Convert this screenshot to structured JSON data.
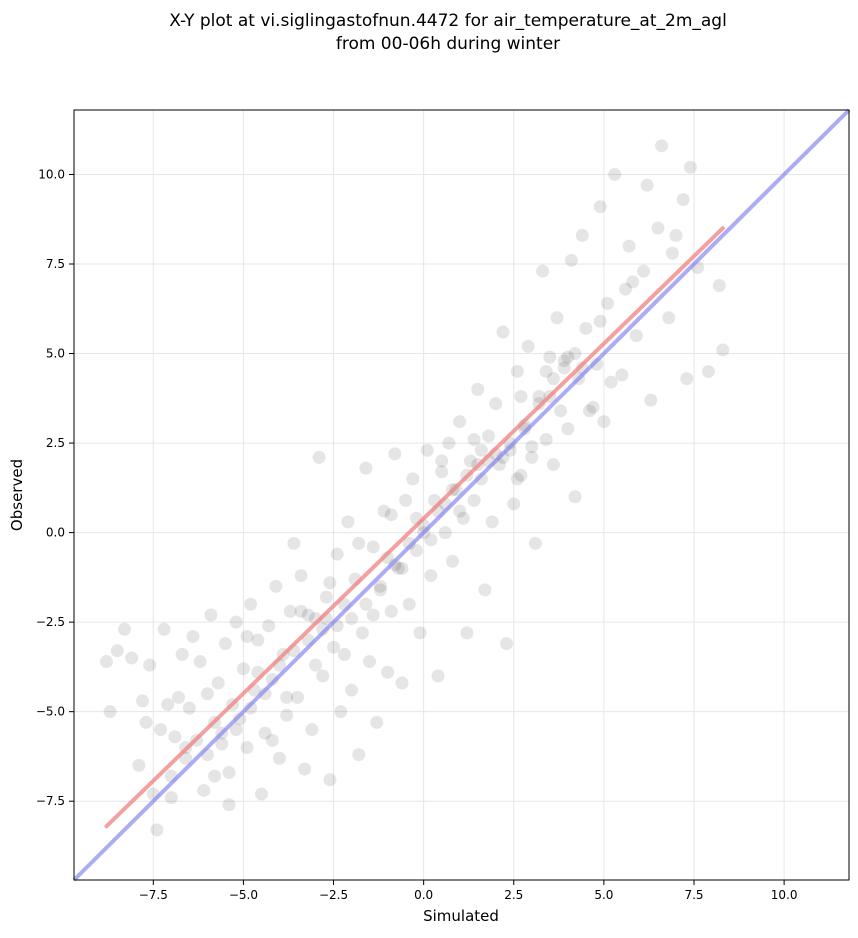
{
  "chart_data": {
    "type": "scatter",
    "title_line1": "X-Y plot at vi.siglingastofnun.4472 for air_temperature_at_2m_agl",
    "title_line2": "from 00-06h during winter",
    "xlabel": "Simulated",
    "ylabel": "Observed",
    "xlim": [
      -9.7,
      11.8
    ],
    "ylim": [
      -9.7,
      11.8
    ],
    "xticks": [
      -7.5,
      -5.0,
      -2.5,
      0.0,
      2.5,
      5.0,
      7.5,
      10.0
    ],
    "yticks": [
      -7.5,
      -5.0,
      -2.5,
      0.0,
      2.5,
      5.0,
      7.5,
      10.0
    ],
    "xtick_labels": [
      "−7.5",
      "−5.0",
      "−2.5",
      "0.0",
      "2.5",
      "5.0",
      "7.5",
      "10.0"
    ],
    "ytick_labels": [
      "−7.5",
      "−5.0",
      "−2.5",
      "0.0",
      "2.5",
      "5.0",
      "7.5",
      "10.0"
    ],
    "grid": true,
    "colors": {
      "points": "#000000",
      "fit_line": "#f08080",
      "identity_line": "#8080f0"
    },
    "fit_line": {
      "x": [
        -8.8,
        8.3
      ],
      "y": [
        -8.2,
        8.5
      ]
    },
    "identity_line": {
      "x": [
        -9.7,
        11.8
      ],
      "y": [
        -9.7,
        11.8
      ]
    },
    "points": [
      [
        -8.8,
        -3.6
      ],
      [
        -8.7,
        -5.0
      ],
      [
        -8.5,
        -3.3
      ],
      [
        -8.3,
        -2.7
      ],
      [
        -8.1,
        -3.5
      ],
      [
        -7.9,
        -6.5
      ],
      [
        -7.8,
        -4.7
      ],
      [
        -7.7,
        -5.3
      ],
      [
        -7.6,
        -3.7
      ],
      [
        -7.5,
        -7.3
      ],
      [
        -7.4,
        -8.3
      ],
      [
        -7.3,
        -5.5
      ],
      [
        -7.2,
        -2.7
      ],
      [
        -7.1,
        -4.8
      ],
      [
        -7.0,
        -7.4
      ],
      [
        -6.9,
        -5.7
      ],
      [
        -6.8,
        -4.6
      ],
      [
        -6.7,
        -3.4
      ],
      [
        -6.6,
        -6.3
      ],
      [
        -6.5,
        -4.9
      ],
      [
        -6.4,
        -2.9
      ],
      [
        -6.3,
        -5.8
      ],
      [
        -6.2,
        -3.6
      ],
      [
        -6.1,
        -7.2
      ],
      [
        -6.0,
        -4.5
      ],
      [
        -5.9,
        -2.3
      ],
      [
        -5.8,
        -6.8
      ],
      [
        -5.7,
        -4.2
      ],
      [
        -5.6,
        -5.6
      ],
      [
        -5.5,
        -3.1
      ],
      [
        -5.4,
        -7.6
      ],
      [
        -5.3,
        -4.8
      ],
      [
        -5.2,
        -2.5
      ],
      [
        -5.1,
        -5.2
      ],
      [
        -5.0,
        -3.8
      ],
      [
        -4.9,
        -6.0
      ],
      [
        -4.8,
        -2.0
      ],
      [
        -4.7,
        -4.4
      ],
      [
        -4.6,
        -3.0
      ],
      [
        -4.5,
        -7.3
      ],
      [
        -4.4,
        -5.6
      ],
      [
        -4.3,
        -2.6
      ],
      [
        -4.2,
        -4.1
      ],
      [
        -4.1,
        -1.5
      ],
      [
        -4.0,
        -6.3
      ],
      [
        -3.9,
        -3.4
      ],
      [
        -3.8,
        -5.1
      ],
      [
        -3.7,
        -2.2
      ],
      [
        -3.6,
        -0.3
      ],
      [
        -3.5,
        -4.6
      ],
      [
        -3.4,
        -1.2
      ],
      [
        -3.3,
        -6.6
      ],
      [
        -3.2,
        -3.0
      ],
      [
        -3.1,
        -5.5
      ],
      [
        -3.0,
        -2.4
      ],
      [
        -2.9,
        2.1
      ],
      [
        -2.8,
        -4.0
      ],
      [
        -2.7,
        -1.8
      ],
      [
        -2.6,
        -6.9
      ],
      [
        -2.5,
        -3.2
      ],
      [
        -2.4,
        -0.6
      ],
      [
        -2.3,
        -5.0
      ],
      [
        -2.2,
        -2.0
      ],
      [
        -2.1,
        0.3
      ],
      [
        -2.0,
        -4.4
      ],
      [
        -1.9,
        -1.3
      ],
      [
        -1.8,
        -6.2
      ],
      [
        -1.7,
        -2.8
      ],
      [
        -1.6,
        1.8
      ],
      [
        -1.5,
        -3.6
      ],
      [
        -1.4,
        -0.4
      ],
      [
        -1.3,
        -5.3
      ],
      [
        -1.2,
        -1.6
      ],
      [
        -1.1,
        0.6
      ],
      [
        -1.0,
        -3.9
      ],
      [
        -0.9,
        -2.2
      ],
      [
        -0.8,
        2.2
      ],
      [
        -0.7,
        -1.0
      ],
      [
        -0.6,
        -4.2
      ],
      [
        -0.5,
        0.9
      ],
      [
        -0.4,
        -2.0
      ],
      [
        -0.3,
        1.5
      ],
      [
        -0.2,
        -0.5
      ],
      [
        -0.1,
        -2.8
      ],
      [
        0.0,
        0.2
      ],
      [
        0.1,
        2.3
      ],
      [
        0.2,
        -1.2
      ],
      [
        0.3,
        0.9
      ],
      [
        0.4,
        -4.0
      ],
      [
        0.5,
        1.7
      ],
      [
        0.6,
        0.0
      ],
      [
        0.7,
        2.5
      ],
      [
        0.8,
        -0.8
      ],
      [
        0.9,
        1.2
      ],
      [
        1.0,
        3.1
      ],
      [
        1.1,
        0.4
      ],
      [
        1.2,
        -2.8
      ],
      [
        1.3,
        2.0
      ],
      [
        1.4,
        0.9
      ],
      [
        1.5,
        4.0
      ],
      [
        1.6,
        1.5
      ],
      [
        1.7,
        -1.6
      ],
      [
        1.8,
        2.7
      ],
      [
        1.9,
        0.3
      ],
      [
        2.0,
        3.6
      ],
      [
        2.1,
        1.9
      ],
      [
        2.2,
        5.6
      ],
      [
        2.3,
        -3.1
      ],
      [
        2.4,
        2.3
      ],
      [
        2.5,
        0.8
      ],
      [
        2.6,
        4.5
      ],
      [
        2.7,
        1.6
      ],
      [
        2.8,
        3.0
      ],
      [
        2.9,
        5.2
      ],
      [
        3.0,
        2.1
      ],
      [
        3.1,
        -0.3
      ],
      [
        3.2,
        3.8
      ],
      [
        3.3,
        7.3
      ],
      [
        3.4,
        2.6
      ],
      [
        3.5,
        4.9
      ],
      [
        3.6,
        1.9
      ],
      [
        3.7,
        6.0
      ],
      [
        3.8,
        3.4
      ],
      [
        3.9,
        4.6
      ],
      [
        4.0,
        2.9
      ],
      [
        4.1,
        7.6
      ],
      [
        4.2,
        1.0
      ],
      [
        4.3,
        4.3
      ],
      [
        4.4,
        8.3
      ],
      [
        4.5,
        5.7
      ],
      [
        4.7,
        3.5
      ],
      [
        4.9,
        9.1
      ],
      [
        5.0,
        3.1
      ],
      [
        5.1,
        6.4
      ],
      [
        5.3,
        10.0
      ],
      [
        5.5,
        4.4
      ],
      [
        5.7,
        8.0
      ],
      [
        5.9,
        5.5
      ],
      [
        6.1,
        7.3
      ],
      [
        6.3,
        3.7
      ],
      [
        6.5,
        8.5
      ],
      [
        6.6,
        10.8
      ],
      [
        6.8,
        6.0
      ],
      [
        7.0,
        8.3
      ],
      [
        7.2,
        9.3
      ],
      [
        7.3,
        4.3
      ],
      [
        7.4,
        10.2
      ],
      [
        7.6,
        7.4
      ],
      [
        7.9,
        4.5
      ],
      [
        8.2,
        6.9
      ],
      [
        8.3,
        5.1
      ],
      [
        6.2,
        9.7
      ],
      [
        5.6,
        6.8
      ],
      [
        4.8,
        4.7
      ],
      [
        4.0,
        4.9
      ],
      [
        3.6,
        4.3
      ],
      [
        3.2,
        3.6
      ],
      [
        2.8,
        2.9
      ],
      [
        2.4,
        2.5
      ],
      [
        2.0,
        2.2
      ],
      [
        1.6,
        2.3
      ],
      [
        1.2,
        1.6
      ],
      [
        0.8,
        1.2
      ],
      [
        0.4,
        0.6
      ],
      [
        0.0,
        0.0
      ],
      [
        -0.4,
        -0.3
      ],
      [
        -0.8,
        -0.9
      ],
      [
        -1.2,
        -1.5
      ],
      [
        -1.6,
        -2.0
      ],
      [
        -2.0,
        -2.4
      ],
      [
        -2.4,
        -2.6
      ],
      [
        -2.8,
        -2.7
      ],
      [
        -3.2,
        -2.3
      ],
      [
        -3.6,
        -3.3
      ],
      [
        -4.0,
        -3.7
      ],
      [
        -4.4,
        -4.5
      ],
      [
        -4.8,
        -4.9
      ],
      [
        -5.2,
        -5.5
      ],
      [
        -5.6,
        -5.9
      ],
      [
        -6.0,
        -6.2
      ],
      [
        4.2,
        5.0
      ],
      [
        3.9,
        4.8
      ],
      [
        4.4,
        4.6
      ],
      [
        3.5,
        3.8
      ],
      [
        1.8,
        2.0
      ],
      [
        1.5,
        1.9
      ],
      [
        2.2,
        2.1
      ],
      [
        0.6,
        0.8
      ],
      [
        -0.2,
        0.4
      ],
      [
        -1.0,
        -0.7
      ],
      [
        -2.7,
        -2.4
      ],
      [
        -3.4,
        -2.2
      ],
      [
        -4.6,
        -3.9
      ],
      [
        -5.8,
        -5.3
      ],
      [
        -6.6,
        -6.0
      ],
      [
        -7.0,
        -6.8
      ],
      [
        5.2,
        4.2
      ],
      [
        4.6,
        3.4
      ],
      [
        3.0,
        2.4
      ],
      [
        2.6,
        1.5
      ],
      [
        1.0,
        0.6
      ],
      [
        0.2,
        -0.2
      ],
      [
        -0.6,
        -1.0
      ],
      [
        -1.4,
        -2.3
      ],
      [
        -2.2,
        -3.4
      ],
      [
        -3.0,
        -3.7
      ],
      [
        -3.8,
        -4.6
      ],
      [
        -4.2,
        -5.8
      ],
      [
        -5.4,
        -6.7
      ],
      [
        6.9,
        7.8
      ],
      [
        5.8,
        7.0
      ],
      [
        4.9,
        5.9
      ],
      [
        3.4,
        4.5
      ],
      [
        2.7,
        3.8
      ],
      [
        1.4,
        2.6
      ],
      [
        0.5,
        2.0
      ],
      [
        -0.9,
        0.5
      ],
      [
        -1.8,
        -0.3
      ],
      [
        -2.6,
        -1.4
      ],
      [
        -4.9,
        -2.9
      ]
    ]
  }
}
